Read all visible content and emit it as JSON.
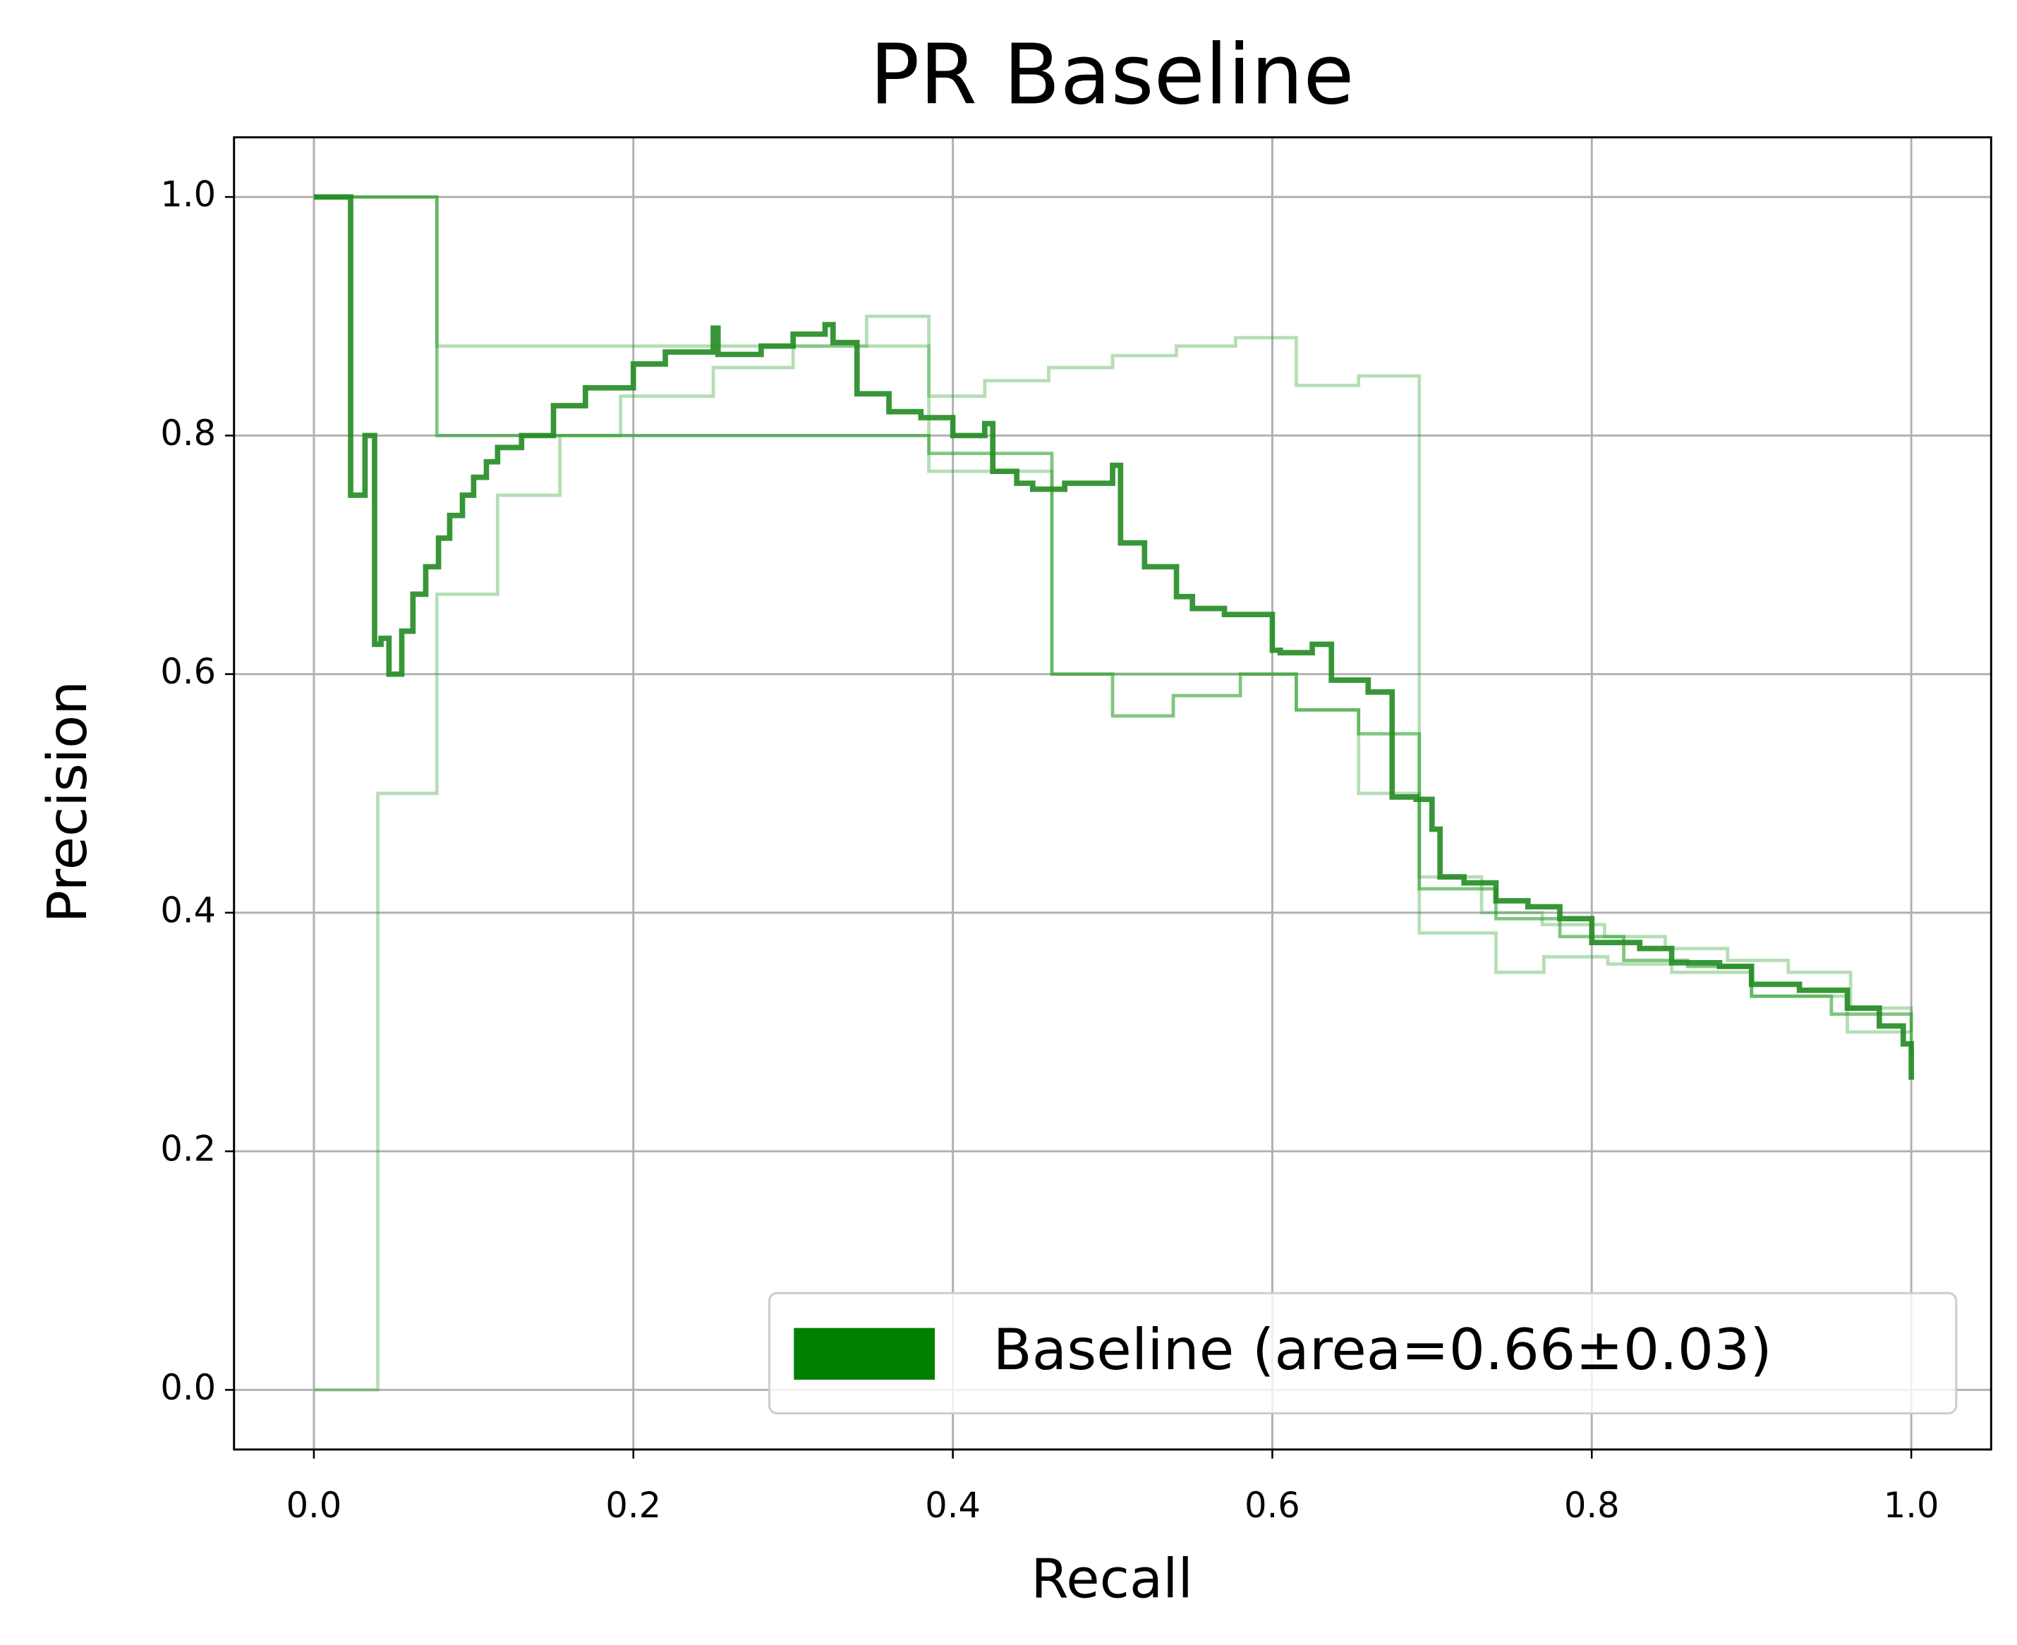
{
  "chart_data": {
    "type": "step",
    "title": "PR Baseline",
    "x_label": "Recall",
    "y_label": "Precision",
    "xlim": [
      -0.05,
      1.05
    ],
    "ylim": [
      -0.05,
      1.05
    ],
    "xticks": [
      {
        "value": 0,
        "label": "0.0"
      },
      0.2,
      0.4,
      0.6,
      0.8,
      {
        "value": 1,
        "label": "1.0"
      }
    ],
    "yticks": [
      {
        "value": 0,
        "label": "0.0"
      },
      0.2,
      0.4,
      0.6,
      0.8,
      {
        "value": 1,
        "label": "1.0"
      }
    ],
    "grid": true,
    "legend": "lower right",
    "series": [
      {
        "color": "#2ca02c",
        "opacity": 0.35,
        "x": [
          0,
          0.04,
          0.077,
          0.115,
          0.154,
          0.192,
          0.25,
          0.3,
          0.346,
          0.385,
          0.462,
          0.5,
          0.538,
          0.577,
          0.615,
          0.654,
          0.692,
          0.731,
          0.769,
          0.808,
          0.846,
          0.885,
          0.923,
          0.962,
          1.0
        ],
        "values": [
          0,
          0.5,
          0.667,
          0.75,
          0.8,
          0.833,
          0.857,
          0.875,
          0.9,
          0.77,
          0.6,
          0.6,
          0.6,
          0.6,
          0.57,
          0.5,
          0.43,
          0.4,
          0.39,
          0.38,
          0.37,
          0.36,
          0.35,
          0.32,
          0.28
        ]
      },
      {
        "color": "#2ca02c",
        "opacity": 0.35,
        "x": [
          0,
          0.04,
          0.077,
          0.346,
          0.385,
          0.42,
          0.46,
          0.5,
          0.54,
          0.577,
          0.615,
          0.654,
          0.692,
          0.74,
          0.77,
          0.81,
          0.85,
          0.9,
          0.93,
          0.96,
          1.0
        ],
        "values": [
          1.0,
          1.0,
          0.875,
          0.875,
          0.833,
          0.846,
          0.857,
          0.867,
          0.875,
          0.882,
          0.842,
          0.85,
          0.383,
          0.35,
          0.363,
          0.357,
          0.35,
          0.33,
          0.33,
          0.3,
          0.28
        ]
      },
      {
        "color": "#2ca02c",
        "opacity": 0.6,
        "x": [
          0,
          0.077,
          0.385,
          0.462,
          0.5,
          0.538,
          0.58,
          0.615,
          0.654,
          0.692,
          0.74,
          0.78,
          0.82,
          0.86,
          0.9,
          0.95,
          1.0
        ],
        "values": [
          1.0,
          0.8,
          0.785,
          0.6,
          0.565,
          0.582,
          0.6,
          0.57,
          0.55,
          0.42,
          0.395,
          0.38,
          0.36,
          0.355,
          0.33,
          0.315,
          0.3
        ]
      },
      {
        "name": "Baseline (area=0.66±0.03)",
        "color": "#228b22",
        "opacity": 0.9,
        "legend_color": "#008000",
        "x": [
          0,
          0.023,
          0.032,
          0.038,
          0.042,
          0.047,
          0.055,
          0.062,
          0.07,
          0.078,
          0.085,
          0.093,
          0.1,
          0.108,
          0.115,
          0.13,
          0.15,
          0.17,
          0.2,
          0.22,
          0.25,
          0.253,
          0.28,
          0.3,
          0.32,
          0.325,
          0.34,
          0.36,
          0.38,
          0.4,
          0.42,
          0.425,
          0.44,
          0.45,
          0.47,
          0.5,
          0.505,
          0.52,
          0.54,
          0.55,
          0.57,
          0.6,
          0.605,
          0.625,
          0.637,
          0.66,
          0.675,
          0.69,
          0.7,
          0.705,
          0.72,
          0.74,
          0.76,
          0.78,
          0.8,
          0.83,
          0.85,
          0.88,
          0.9,
          0.93,
          0.96,
          0.98,
          0.995,
          1.0
        ],
        "values": [
          1.0,
          0.75,
          0.8,
          0.625,
          0.63,
          0.6,
          0.636,
          0.667,
          0.69,
          0.714,
          0.733,
          0.75,
          0.765,
          0.778,
          0.79,
          0.8,
          0.825,
          0.84,
          0.86,
          0.87,
          0.89,
          0.868,
          0.875,
          0.885,
          0.893,
          0.878,
          0.835,
          0.82,
          0.815,
          0.8,
          0.81,
          0.77,
          0.76,
          0.755,
          0.76,
          0.775,
          0.71,
          0.69,
          0.665,
          0.655,
          0.65,
          0.62,
          0.618,
          0.625,
          0.595,
          0.585,
          0.497,
          0.495,
          0.47,
          0.43,
          0.425,
          0.41,
          0.405,
          0.395,
          0.375,
          0.37,
          0.358,
          0.355,
          0.34,
          0.335,
          0.32,
          0.305,
          0.29,
          0.26
        ]
      }
    ]
  }
}
